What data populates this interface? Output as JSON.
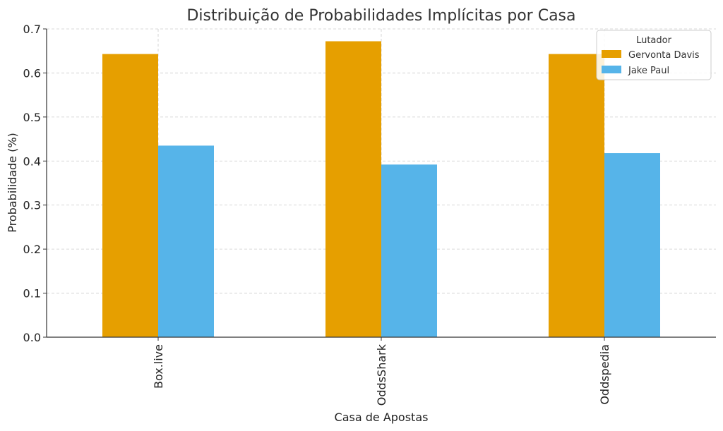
{
  "chart_data": {
    "type": "bar",
    "title": "Distribuição de Probabilidades Implícitas por Casa",
    "xlabel": "Casa de Apostas",
    "ylabel": "Probabilidade (%)",
    "categories": [
      "Box.live",
      "OddsShark",
      "Oddspedia"
    ],
    "series": [
      {
        "name": "Gervonta Davis",
        "color": "#E69F00",
        "values": [
          0.643,
          0.672,
          0.643
        ]
      },
      {
        "name": "Jake Paul",
        "color": "#56B4E9",
        "values": [
          0.435,
          0.392,
          0.418
        ]
      }
    ],
    "ylim": [
      0,
      0.7
    ],
    "yticks": [
      "0.0",
      "0.1",
      "0.2",
      "0.3",
      "0.4",
      "0.5",
      "0.6",
      "0.7"
    ],
    "grid": true,
    "legend": {
      "title": "Lutador",
      "position": "top-right"
    }
  }
}
